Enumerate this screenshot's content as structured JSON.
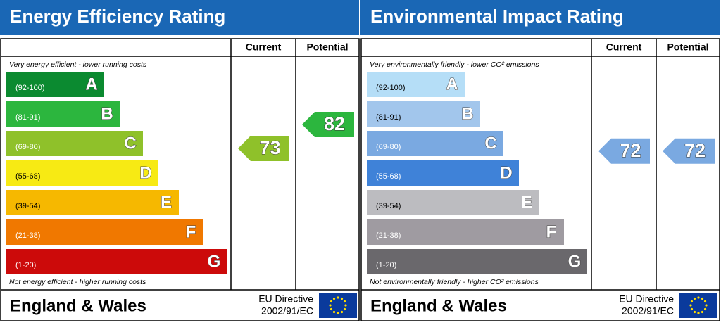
{
  "panels": [
    {
      "title": "Energy Efficiency Rating",
      "header_current": "Current",
      "header_potential": "Potential",
      "top_note": "Very energy efficient - lower running costs",
      "bottom_note": "Not energy efficient - higher running costs",
      "bands": [
        {
          "range": "(92-100)",
          "letter": "A",
          "color": "#0b8a30",
          "text_color": "#ffffff"
        },
        {
          "range": "(81-91)",
          "letter": "B",
          "color": "#2cb63e",
          "text_color": "#ffffff"
        },
        {
          "range": "(69-80)",
          "letter": "C",
          "color": "#8fc12a",
          "text_color": "#ffffff"
        },
        {
          "range": "(55-68)",
          "letter": "D",
          "color": "#f7ea14",
          "text_color": "#000000"
        },
        {
          "range": "(39-54)",
          "letter": "E",
          "color": "#f6b800",
          "text_color": "#000000"
        },
        {
          "range": "(21-38)",
          "letter": "F",
          "color": "#f07800",
          "text_color": "#ffffff"
        },
        {
          "range": "(1-20)",
          "letter": "G",
          "color": "#cc0a0a",
          "text_color": "#ffffff"
        }
      ],
      "current": {
        "value": 73,
        "color": "#8fc12a"
      },
      "potential": {
        "value": 82,
        "color": "#2cb63e"
      },
      "footer_region": "England & Wales",
      "footer_directive_1": "EU Directive",
      "footer_directive_2": "2002/91/EC"
    },
    {
      "title": "Environmental Impact Rating",
      "header_current": "Current",
      "header_potential": "Potential",
      "top_note": "Very environmentally friendly - lower CO² emissions",
      "bottom_note": "Not environmentally friendly - higher CO² emissions",
      "bands": [
        {
          "range": "(92-100)",
          "letter": "A",
          "color": "#b5def7",
          "text_color": "#000000"
        },
        {
          "range": "(81-91)",
          "letter": "B",
          "color": "#a2c6ec",
          "text_color": "#000000"
        },
        {
          "range": "(69-80)",
          "letter": "C",
          "color": "#7aa9e1",
          "text_color": "#ffffff"
        },
        {
          "range": "(55-68)",
          "letter": "D",
          "color": "#3f82d8",
          "text_color": "#ffffff"
        },
        {
          "range": "(39-54)",
          "letter": "E",
          "color": "#bcbcc0",
          "text_color": "#000000"
        },
        {
          "range": "(21-38)",
          "letter": "F",
          "color": "#9f9ba1",
          "text_color": "#ffffff"
        },
        {
          "range": "(1-20)",
          "letter": "G",
          "color": "#6a686c",
          "text_color": "#ffffff"
        }
      ],
      "current": {
        "value": 72,
        "color": "#7aa9e1"
      },
      "potential": {
        "value": 72,
        "color": "#7aa9e1"
      },
      "footer_region": "England & Wales",
      "footer_directive_1": "EU Directive",
      "footer_directive_2": "2002/91/EC"
    }
  ]
}
